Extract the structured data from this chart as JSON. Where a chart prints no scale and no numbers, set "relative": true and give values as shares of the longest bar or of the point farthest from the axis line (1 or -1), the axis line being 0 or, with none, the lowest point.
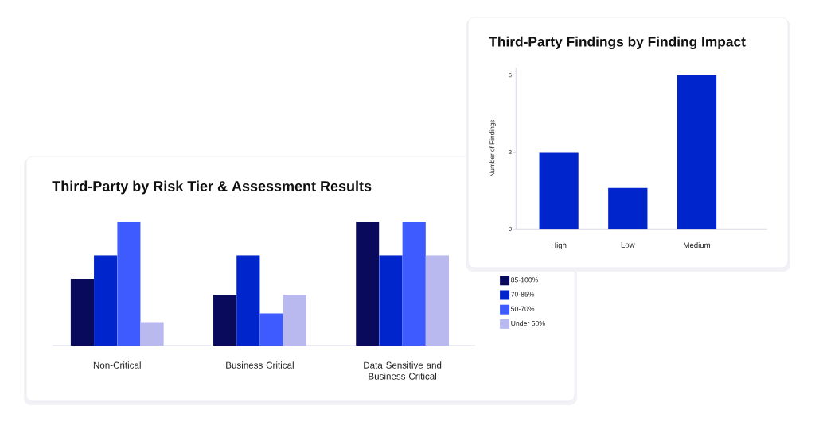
{
  "chart_data": [
    {
      "type": "bar",
      "title": "Third-Party Findings by Finding Impact",
      "ylabel": "Number of Findings",
      "categories": [
        "High",
        "Low",
        "Medium"
      ],
      "values": [
        3,
        1.6,
        6
      ],
      "color": "#0025cc",
      "ylim": [
        0,
        6.3
      ],
      "yticks": [
        0,
        3,
        6
      ]
    },
    {
      "type": "bar",
      "title": "Third-Party by Risk Tier & Assessment Results",
      "categories": [
        "Non-Critical",
        "Business Critical",
        "Data Sensitive and Business Critical"
      ],
      "relative": true,
      "legend": "right",
      "series": [
        {
          "name": "85-100%",
          "color": "#0a0a5c",
          "values": [
            0.54,
            0.41,
            1
          ]
        },
        {
          "name": "70-85%",
          "color": "#0025cc",
          "values": [
            0.73,
            0.73,
            0.73
          ]
        },
        {
          "name": "50-70%",
          "color": "#3d5bff",
          "values": [
            1,
            0.26,
            1
          ]
        },
        {
          "name": "Under 50%",
          "color": "#b9b9ef",
          "values": [
            0.19,
            0.41,
            0.73
          ]
        }
      ]
    }
  ]
}
